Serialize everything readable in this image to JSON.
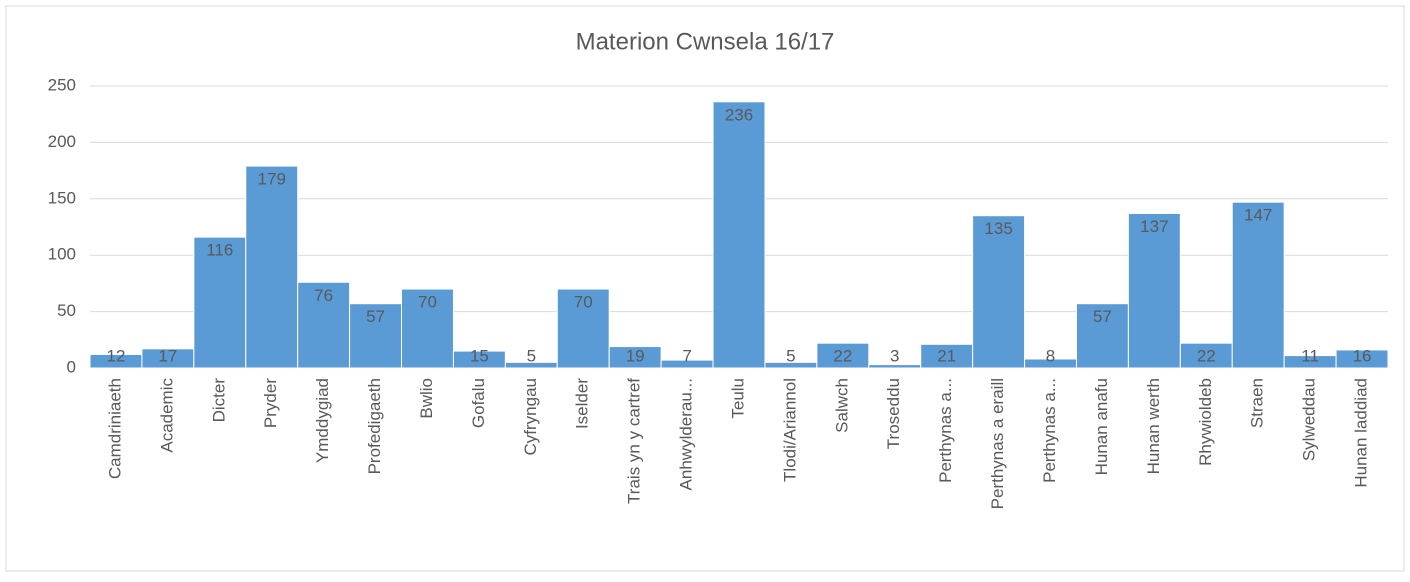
{
  "chart_data": {
    "type": "bar",
    "title": "Materion Cwnsela 16/17",
    "categories": [
      "Camdriniaeth",
      "Academic",
      "Dicter",
      "Pryder",
      "Ymddygiad",
      "Profedigaeth",
      "Bwlio",
      "Gofalu",
      "Cyfryngau",
      "Iselder",
      "Trais yn y cartref",
      "Anhwylderau...",
      "Teulu",
      "Tlodi/Ariannol",
      "Salwch",
      "Troseddu",
      "Perthynas a...",
      "Perthynas a eraill",
      "Perthynas a...",
      "Hunan anafu",
      "Hunan werth",
      "Rhywioldeb",
      "Straen",
      "Sylweddau",
      "Hunan laddiad"
    ],
    "values": [
      12,
      17,
      116,
      179,
      76,
      57,
      70,
      15,
      5,
      70,
      19,
      7,
      236,
      5,
      22,
      3,
      21,
      135,
      8,
      57,
      137,
      22,
      147,
      11,
      16
    ],
    "color": "#5b9bd5",
    "ylim": [
      0,
      250
    ],
    "yticks": [
      0,
      50,
      100,
      150,
      200,
      250
    ],
    "grid": true
  }
}
